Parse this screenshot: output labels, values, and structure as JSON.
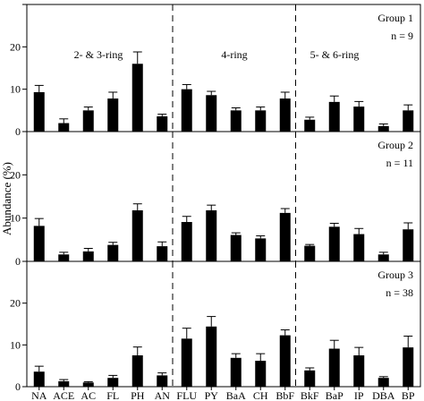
{
  "chart_data": {
    "type": "bar",
    "ylabel": "Abundance (%)",
    "categories": [
      "NA",
      "ACE",
      "AC",
      "FL",
      "PH",
      "AN",
      "FLU",
      "PY",
      "BaA",
      "CH",
      "BbF",
      "BkF",
      "BaP",
      "IP",
      "DBA",
      "BP"
    ],
    "ylim": [
      0,
      30
    ],
    "yticks": [
      0,
      10,
      20,
      30
    ],
    "ring_groups": [
      {
        "label": "2- & 3-ring",
        "start": 0,
        "end": 5
      },
      {
        "label": "4-ring",
        "start": 6,
        "end": 10
      },
      {
        "label": "5- & 6-ring",
        "start": 11,
        "end": 15
      }
    ],
    "panels": [
      {
        "name": "Group 1",
        "n_label": "n = 9",
        "values": [
          9.3,
          2.0,
          5.0,
          7.8,
          16.0,
          3.6,
          10.0,
          8.6,
          5.0,
          5.0,
          7.8,
          2.8,
          7.0,
          5.9,
          1.3,
          5.0
        ],
        "errors": [
          1.6,
          1.0,
          0.8,
          1.5,
          2.8,
          0.5,
          1.1,
          0.9,
          0.6,
          0.8,
          1.5,
          0.6,
          1.4,
          1.2,
          0.5,
          1.3
        ]
      },
      {
        "name": "Group 2",
        "n_label": "n = 11",
        "values": [
          8.2,
          1.6,
          2.3,
          3.8,
          11.8,
          3.5,
          9.1,
          11.8,
          6.1,
          5.3,
          11.2,
          3.6,
          8.0,
          6.3,
          1.6,
          7.4
        ],
        "errors": [
          1.7,
          0.5,
          0.7,
          0.6,
          1.5,
          1.0,
          1.3,
          1.2,
          0.5,
          0.6,
          1.0,
          0.3,
          0.8,
          1.3,
          0.5,
          1.5
        ]
      },
      {
        "name": "Group 3",
        "n_label": "n = 38",
        "values": [
          3.6,
          1.3,
          1.0,
          2.1,
          7.5,
          2.7,
          11.5,
          14.4,
          6.9,
          6.2,
          12.3,
          3.9,
          9.1,
          7.5,
          2.1,
          9.4
        ],
        "errors": [
          1.3,
          0.4,
          0.2,
          0.6,
          2.0,
          0.6,
          2.5,
          2.4,
          1.0,
          1.7,
          1.3,
          0.6,
          2.0,
          1.9,
          0.3,
          2.7
        ]
      }
    ]
  }
}
